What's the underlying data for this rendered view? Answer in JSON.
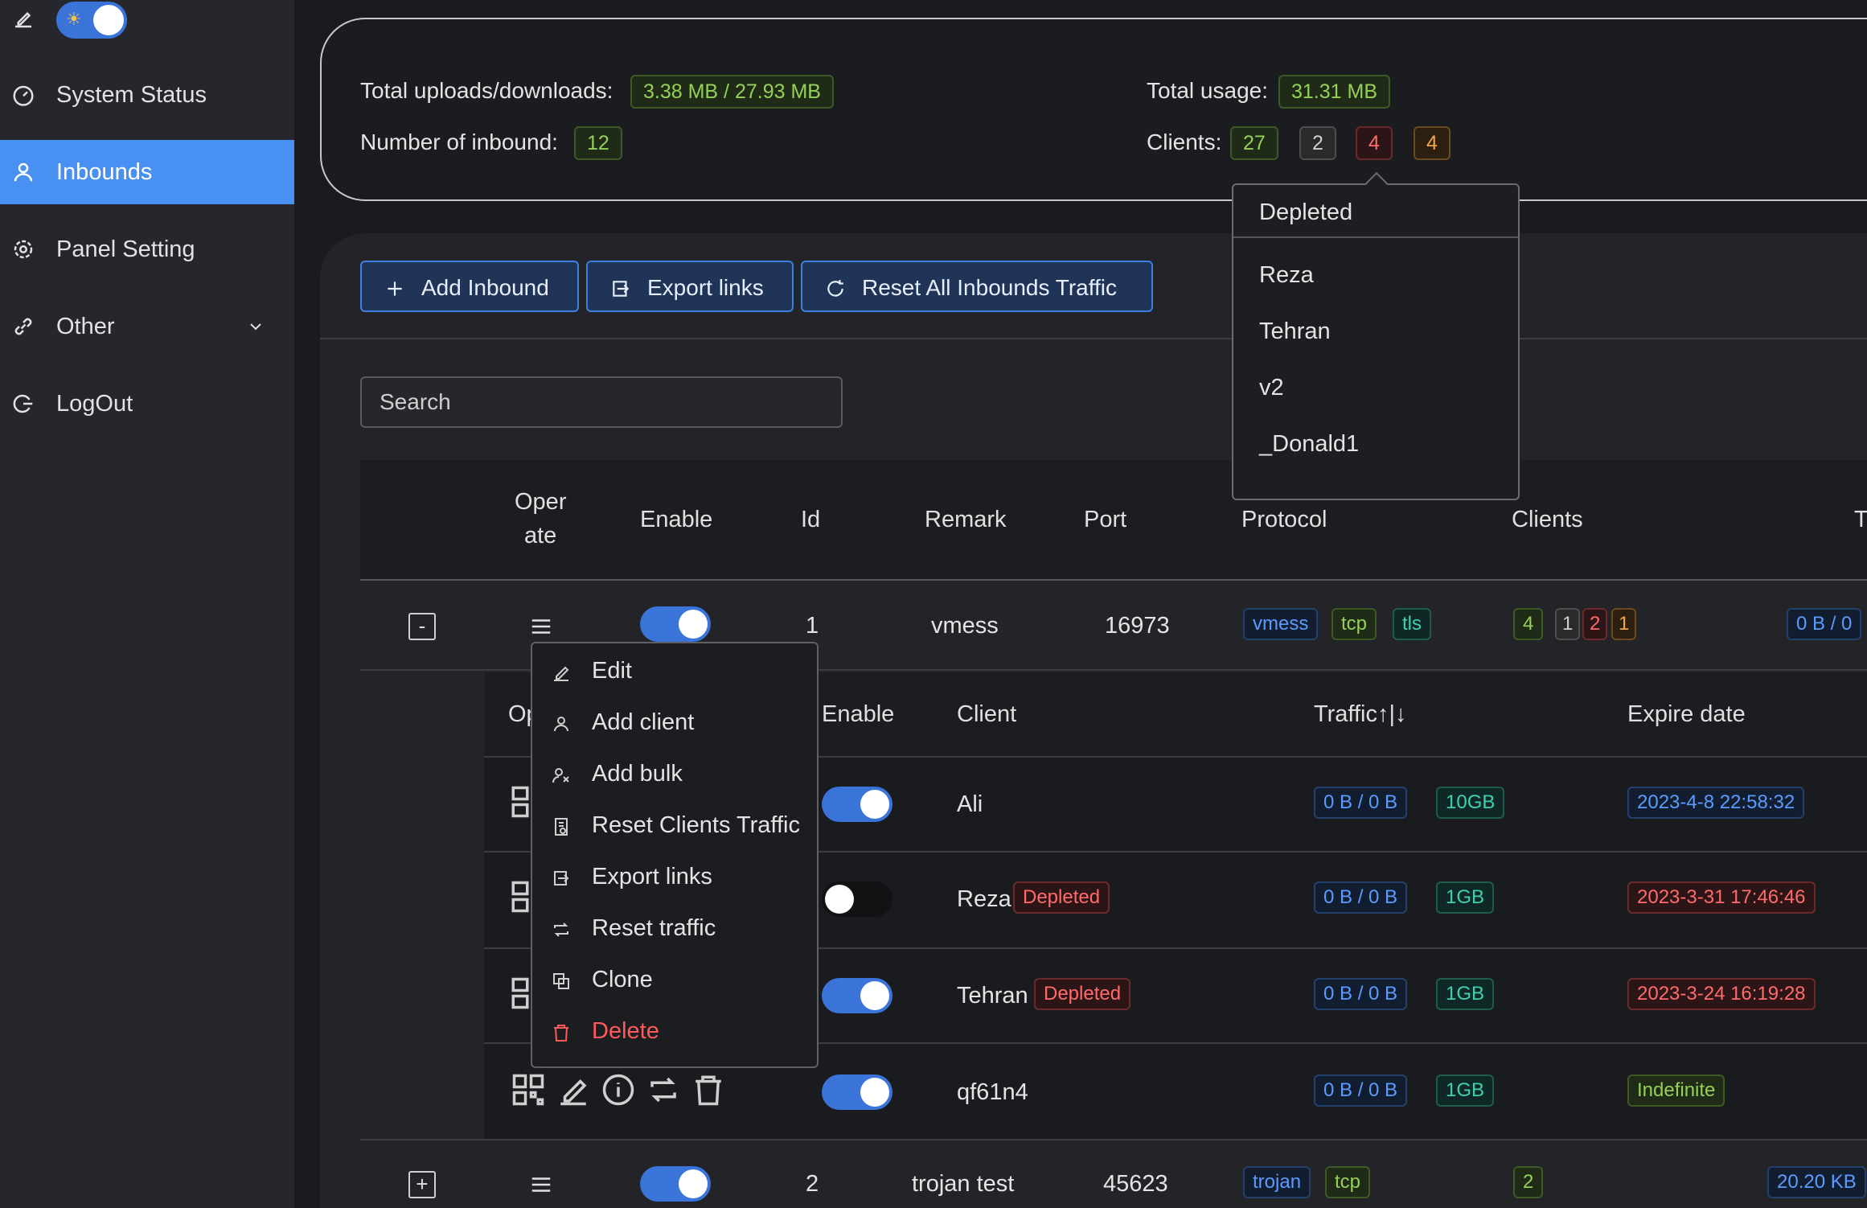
{
  "sidebar": {
    "items": [
      {
        "label": "System Status",
        "icon": "dashboard-icon"
      },
      {
        "label": "Inbounds",
        "icon": "user-icon",
        "active": true
      },
      {
        "label": "Panel Setting",
        "icon": "gear-icon"
      },
      {
        "label": "Other",
        "icon": "link-icon"
      },
      {
        "label": "LogOut",
        "icon": "logout-icon"
      }
    ]
  },
  "stats": {
    "total_ud_label": "Total uploads/downloads:",
    "total_ud_value": "3.38 MB / 27.93 MB",
    "inbound_count_label": "Number of inbound:",
    "inbound_count_value": "12",
    "total_usage_label": "Total usage:",
    "total_usage_value": "31.31 MB",
    "clients_label": "Clients:",
    "clients_counts": [
      "27",
      "2",
      "4",
      "4"
    ]
  },
  "toolbar": {
    "add_inbound": "Add Inbound",
    "export_links": "Export links",
    "reset_all": "Reset All Inbounds Traffic"
  },
  "search": {
    "placeholder": "Search"
  },
  "depleted_popover": {
    "title": "Depleted",
    "items": [
      "Reza",
      "Tehran",
      "v2",
      "_Donald1"
    ]
  },
  "table": {
    "headers": {
      "operate_1": "Oper",
      "operate_2": "ate",
      "enable": "Enable",
      "id": "Id",
      "remark": "Remark",
      "port": "Port",
      "protocol": "Protocol",
      "clients": "Clients",
      "traffic_partial": "T"
    },
    "rows": [
      {
        "expand": "-",
        "id": "1",
        "remark": "vmess",
        "port": "16973",
        "tags": [
          "vmess",
          "tcp",
          "tls"
        ],
        "client_counts": [
          "4",
          "1",
          "2",
          "1"
        ],
        "traffic": "0 B / 0"
      },
      {
        "expand": "+",
        "id": "2",
        "remark": "trojan test",
        "port": "45623",
        "tags": [
          "trojan",
          "tcp"
        ],
        "client_counts": [
          "2"
        ],
        "traffic": "20.20 KB"
      }
    ]
  },
  "subtable": {
    "headers": {
      "operate_partial": "Op",
      "enable": "Enable",
      "client": "Client",
      "traffic": "Traffic↑|↓",
      "expire": "Expire date"
    },
    "rows": [
      {
        "client": "Ali",
        "badge": "",
        "traffic": "0 B / 0 B",
        "quota": "10GB",
        "expire": "2023-4-8 22:58:32",
        "enabled": true
      },
      {
        "client": "Reza",
        "badge": "Depleted",
        "traffic": "0 B / 0 B",
        "quota": "1GB",
        "expire": "2023-3-31 17:46:46",
        "enabled": false
      },
      {
        "client": "Tehran",
        "badge": "Depleted",
        "traffic": "0 B / 0 B",
        "quota": "1GB",
        "expire": "2023-3-24 16:19:28",
        "enabled": true
      },
      {
        "client": "qf61n4",
        "badge": "",
        "traffic": "0 B / 0 B",
        "quota": "1GB",
        "expire": "Indefinite",
        "enabled": true
      }
    ]
  },
  "context_menu": {
    "items": [
      {
        "label": "Edit",
        "icon": "pencil-icon"
      },
      {
        "label": "Add client",
        "icon": "user-icon"
      },
      {
        "label": "Add bulk",
        "icon": "users-icon"
      },
      {
        "label": "Reset Clients Traffic",
        "icon": "file-reset-icon"
      },
      {
        "label": "Export links",
        "icon": "export-icon"
      },
      {
        "label": "Reset traffic",
        "icon": "retweet-icon"
      },
      {
        "label": "Clone",
        "icon": "copy-icon"
      },
      {
        "label": "Delete",
        "icon": "trash-icon",
        "danger": true
      }
    ]
  }
}
